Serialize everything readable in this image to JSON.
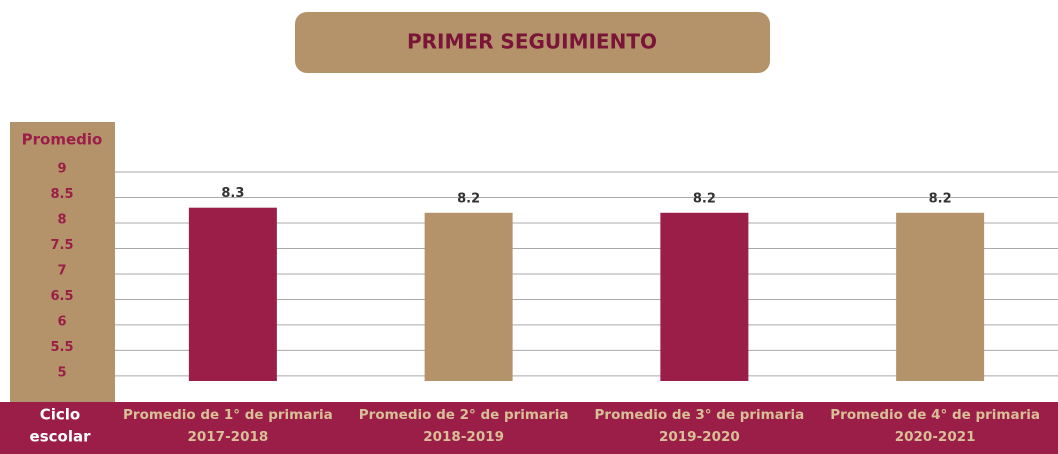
{
  "chart_data": {
    "type": "bar",
    "title": "PRIMER SEGUIMIENTO",
    "y_label": "Promedio",
    "x_label": [
      "Ciclo",
      "escolar"
    ],
    "categories": [
      [
        "Promedio de 1° de primaria",
        "2017-2018"
      ],
      [
        "Promedio de 2° de primaria",
        "2018-2019"
      ],
      [
        "Promedio de 3° de primaria",
        "2019-2020"
      ],
      [
        "Promedio de 4° de primaria",
        "2020-2021"
      ]
    ],
    "values": [
      8.3,
      8.2,
      8.2,
      8.2
    ],
    "colors": [
      "#9b1e48",
      "#b5936a",
      "#9b1e48",
      "#b5936a"
    ],
    "ylim": [
      4.9,
      9
    ],
    "yticks": [
      9,
      8.5,
      8,
      7.5,
      7,
      6.5,
      6,
      5.5,
      5
    ],
    "grid": true
  }
}
